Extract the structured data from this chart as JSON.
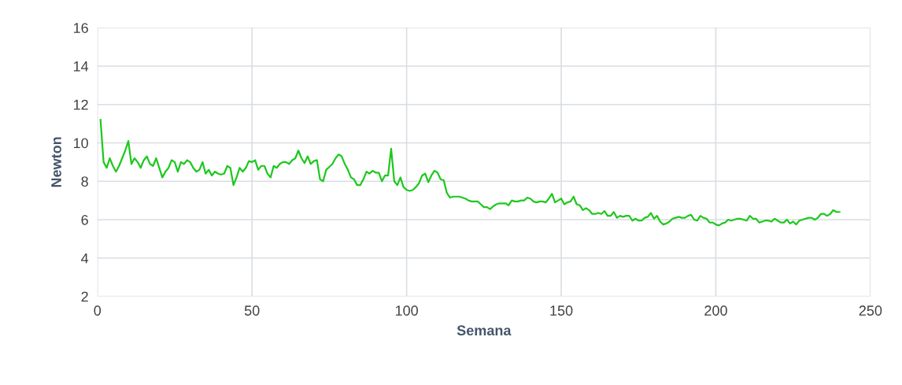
{
  "chart_data": {
    "type": "line",
    "xlabel": "Semana",
    "ylabel": "Newton",
    "xlim": [
      0,
      250
    ],
    "xticks": [
      0,
      50,
      100,
      150,
      200,
      250
    ],
    "ylim": [
      2,
      16
    ],
    "yticks": [
      2,
      4,
      6,
      8,
      10,
      12,
      14,
      16
    ],
    "grid": true,
    "marker": "none",
    "line_style": "solid",
    "x": [
      1,
      2,
      3,
      4,
      5,
      6,
      7,
      8,
      9,
      10,
      11,
      12,
      13,
      14,
      15,
      16,
      17,
      18,
      19,
      20,
      21,
      22,
      23,
      24,
      25,
      26,
      27,
      28,
      29,
      30,
      31,
      32,
      33,
      34,
      35,
      36,
      37,
      38,
      39,
      40,
      41,
      42,
      43,
      44,
      45,
      46,
      47,
      48,
      49,
      50,
      51,
      52,
      53,
      54,
      55,
      56,
      57,
      58,
      59,
      60,
      61,
      62,
      63,
      64,
      65,
      66,
      67,
      68,
      69,
      70,
      71,
      72,
      73,
      74,
      75,
      76,
      77,
      78,
      79,
      80,
      81,
      82,
      83,
      84,
      85,
      86,
      87,
      88,
      89,
      90,
      91,
      92,
      93,
      94,
      95,
      96,
      97,
      98,
      99,
      100,
      101,
      102,
      103,
      104,
      105,
      106,
      107,
      108,
      109,
      110,
      111,
      112,
      113,
      114,
      115,
      116,
      117,
      118,
      119,
      120,
      121,
      122,
      123,
      124,
      125,
      126,
      127,
      128,
      129,
      130,
      131,
      132,
      133,
      134,
      135,
      136,
      137,
      138,
      139,
      140,
      141,
      142,
      143,
      144,
      145,
      146,
      147,
      148,
      149,
      150,
      151,
      152,
      153,
      154,
      155,
      156,
      157,
      158,
      159,
      160,
      161,
      162,
      163,
      164,
      165,
      166,
      167,
      168,
      169,
      170,
      171,
      172,
      173,
      174,
      175,
      176,
      177,
      178,
      179,
      180,
      181,
      182,
      183,
      184,
      185,
      186,
      187,
      188,
      189,
      190,
      191,
      192,
      193,
      194,
      195,
      196,
      197,
      198,
      199,
      200,
      201,
      202,
      203,
      204,
      205,
      206,
      207,
      208,
      209,
      210,
      211,
      212,
      213,
      214,
      215,
      216,
      217,
      218,
      219,
      220,
      221,
      222,
      223,
      224,
      225,
      226,
      227,
      228,
      229,
      230,
      231,
      232,
      233,
      234,
      235,
      236,
      237,
      238,
      239,
      240
    ],
    "series": [
      {
        "color": "#1ec81e",
        "values": [
          11.2,
          9.0,
          8.7,
          9.2,
          8.8,
          8.5,
          8.8,
          9.2,
          9.6,
          10.1,
          8.9,
          9.2,
          9.0,
          8.7,
          9.1,
          9.3,
          8.9,
          8.8,
          9.2,
          8.7,
          8.2,
          8.5,
          8.7,
          9.1,
          9.0,
          8.5,
          9.0,
          8.9,
          9.1,
          9.0,
          8.7,
          8.5,
          8.6,
          9.0,
          8.4,
          8.6,
          8.3,
          8.5,
          8.4,
          8.35,
          8.4,
          8.8,
          8.7,
          7.8,
          8.2,
          8.7,
          8.5,
          8.7,
          9.05,
          9.0,
          9.1,
          8.6,
          8.8,
          8.8,
          8.4,
          8.2,
          8.8,
          8.7,
          8.9,
          9.0,
          9.0,
          8.9,
          9.1,
          9.2,
          9.6,
          9.2,
          8.95,
          9.3,
          8.9,
          9.05,
          9.1,
          8.1,
          8.0,
          8.6,
          8.75,
          8.9,
          9.2,
          9.4,
          9.3,
          8.9,
          8.6,
          8.2,
          8.1,
          7.8,
          7.8,
          8.1,
          8.5,
          8.4,
          8.55,
          8.45,
          8.45,
          8.0,
          8.3,
          8.3,
          9.7,
          8.0,
          7.8,
          8.2,
          7.7,
          7.55,
          7.5,
          7.55,
          7.7,
          7.9,
          8.3,
          8.4,
          7.95,
          8.3,
          8.55,
          8.45,
          8.1,
          8.05,
          7.4,
          7.15,
          7.2,
          7.2,
          7.2,
          7.15,
          7.1,
          7.0,
          6.95,
          6.95,
          6.95,
          6.8,
          6.65,
          6.65,
          6.55,
          6.7,
          6.8,
          6.85,
          6.85,
          6.85,
          6.75,
          7.0,
          6.95,
          6.95,
          7.0,
          7.0,
          7.15,
          7.1,
          6.95,
          6.9,
          6.95,
          6.95,
          6.9,
          7.1,
          7.35,
          6.9,
          7.0,
          7.1,
          6.8,
          6.9,
          6.95,
          7.2,
          6.8,
          6.75,
          6.5,
          6.6,
          6.5,
          6.3,
          6.3,
          6.35,
          6.3,
          6.45,
          6.2,
          6.2,
          6.4,
          6.1,
          6.2,
          6.15,
          6.2,
          6.2,
          5.95,
          6.05,
          5.95,
          5.95,
          6.1,
          6.15,
          6.35,
          6.05,
          6.2,
          5.9,
          5.75,
          5.8,
          5.9,
          6.05,
          6.1,
          6.15,
          6.1,
          6.1,
          6.2,
          6.25,
          6.0,
          5.95,
          6.2,
          6.1,
          6.05,
          5.85,
          5.85,
          5.75,
          5.7,
          5.8,
          5.85,
          6.0,
          5.95,
          6.0,
          6.05,
          6.05,
          6.0,
          5.95,
          6.2,
          6.05,
          6.05,
          5.85,
          5.9,
          5.95,
          5.95,
          5.9,
          6.05,
          5.95,
          5.85,
          5.85,
          6.0,
          5.8,
          5.9,
          5.75,
          5.95,
          6.0,
          6.05,
          6.1,
          6.1,
          6.0,
          6.1,
          6.3,
          6.3,
          6.2,
          6.3,
          6.5,
          6.4,
          6.4
        ]
      }
    ]
  }
}
